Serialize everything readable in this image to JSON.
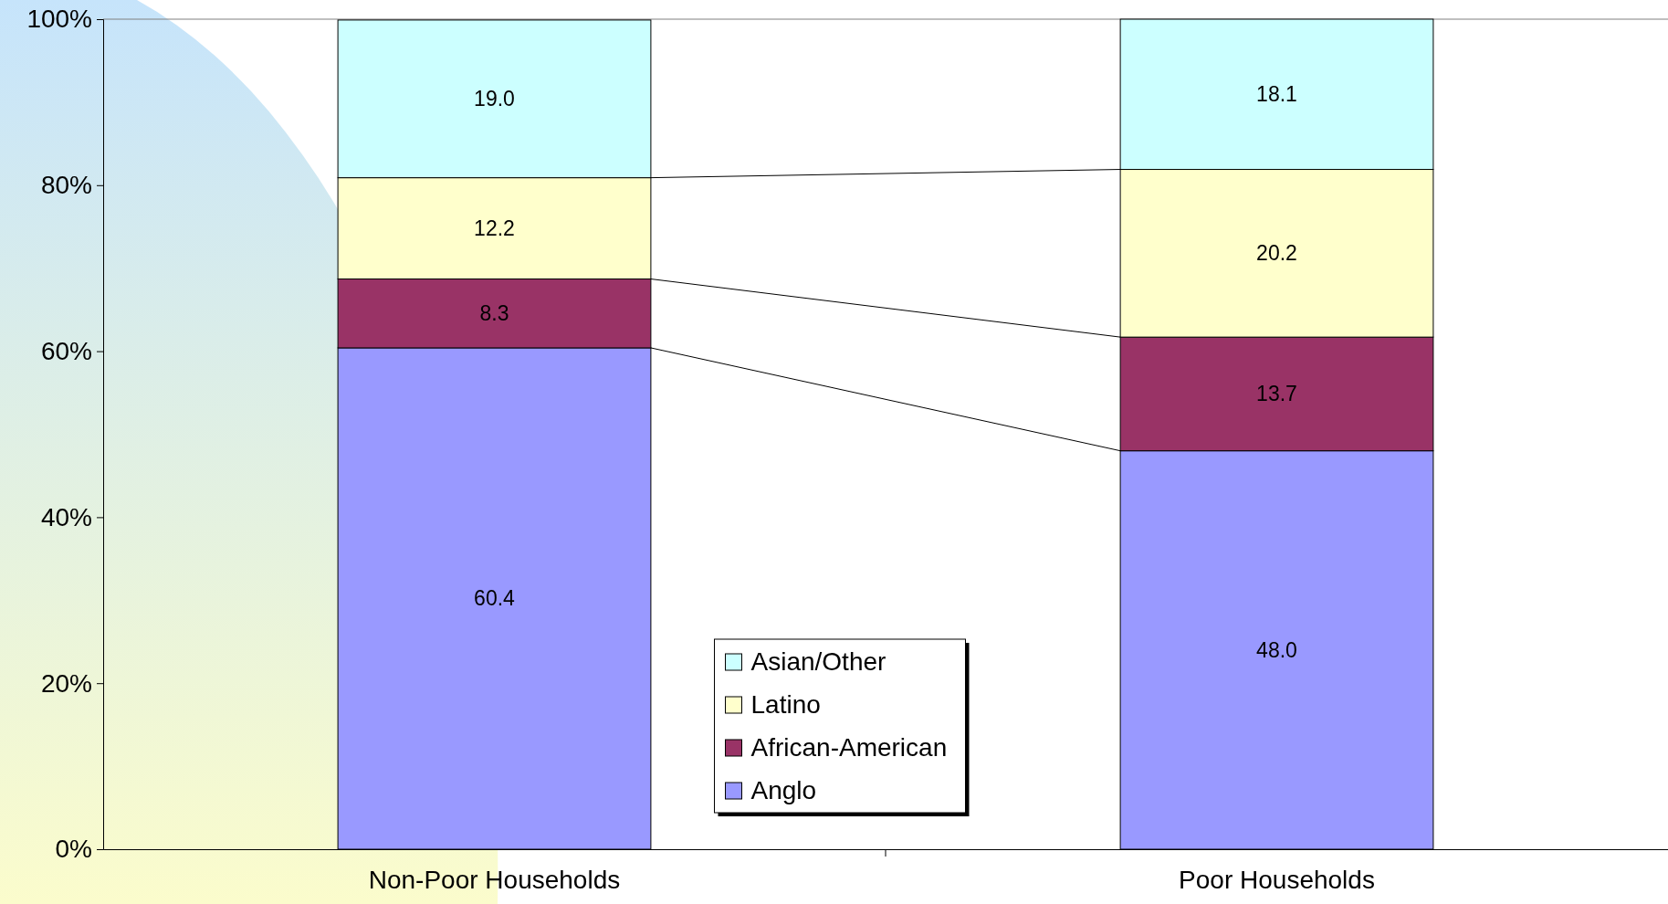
{
  "chart_data": {
    "type": "bar",
    "stacked": true,
    "categories": [
      "Non-Poor Households",
      "Poor Households"
    ],
    "series": [
      {
        "name": "Anglo",
        "color": "#9999ff",
        "values": [
          60.4,
          48.0
        ],
        "value_labels": [
          "60.4",
          "48.0"
        ]
      },
      {
        "name": "African-American",
        "color": "#993366",
        "values": [
          8.3,
          13.7
        ],
        "value_labels": [
          "8.3",
          "13.7"
        ]
      },
      {
        "name": "Latino",
        "color": "#ffffcc",
        "values": [
          12.2,
          20.2
        ],
        "value_labels": [
          "12.2",
          "20.2"
        ]
      },
      {
        "name": "Asian/Other",
        "color": "#ccffff",
        "values": [
          19.0,
          18.1
        ],
        "value_labels": [
          "19.0",
          "18.1"
        ]
      }
    ],
    "ylim": [
      0,
      100
    ],
    "yticks": [
      {
        "value": 0,
        "label": "0%"
      },
      {
        "value": 20,
        "label": "20%"
      },
      {
        "value": 40,
        "label": "40%"
      },
      {
        "value": 60,
        "label": "60%"
      },
      {
        "value": 80,
        "label": "80%"
      },
      {
        "value": 100,
        "label": "100%"
      }
    ],
    "legend": "bottom",
    "grid": false
  }
}
